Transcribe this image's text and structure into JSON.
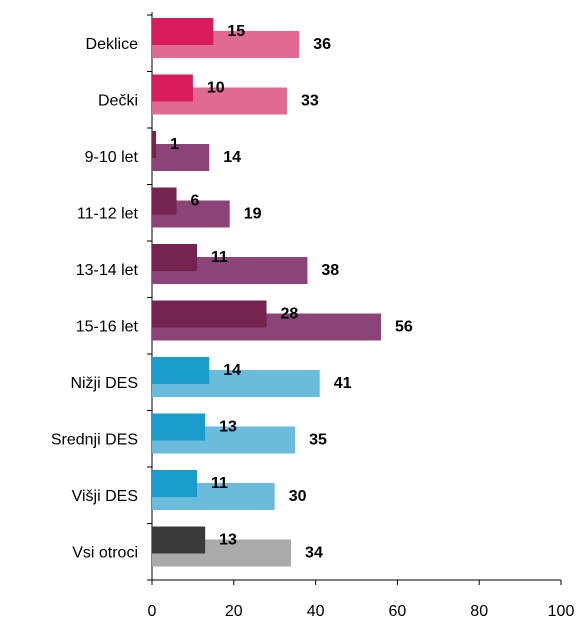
{
  "chart_data": {
    "type": "bar",
    "orientation": "horizontal",
    "categories": [
      "Deklice",
      "Dečki",
      "9-10 let",
      "11-12 let",
      "13-14 let",
      "15-16 let",
      "Nižji DES",
      "Srednji DES",
      "Višji DES",
      "Vsi otroci"
    ],
    "series": [
      {
        "colors": [
          "#e06a92",
          "#e06a92",
          "#8c4478",
          "#8c4478",
          "#8c4478",
          "#8c4478",
          "#6bbbdc",
          "#6bbbdc",
          "#6bbbdc",
          "#aaaaaa"
        ],
        "values": [
          36,
          33,
          14,
          19,
          38,
          56,
          41,
          35,
          30,
          34
        ]
      },
      {
        "colors": [
          "#d81b5c",
          "#d81b5c",
          "#74244f",
          "#74244f",
          "#74244f",
          "#74244f",
          "#1a9ccc",
          "#1a9ccc",
          "#1a9ccc",
          "#3a3a3a"
        ],
        "values": [
          15,
          10,
          1,
          6,
          11,
          28,
          14,
          13,
          11,
          13
        ]
      }
    ],
    "xlim": [
      0,
      100
    ],
    "xticks": [
      0,
      20,
      40,
      60,
      80,
      100
    ]
  }
}
